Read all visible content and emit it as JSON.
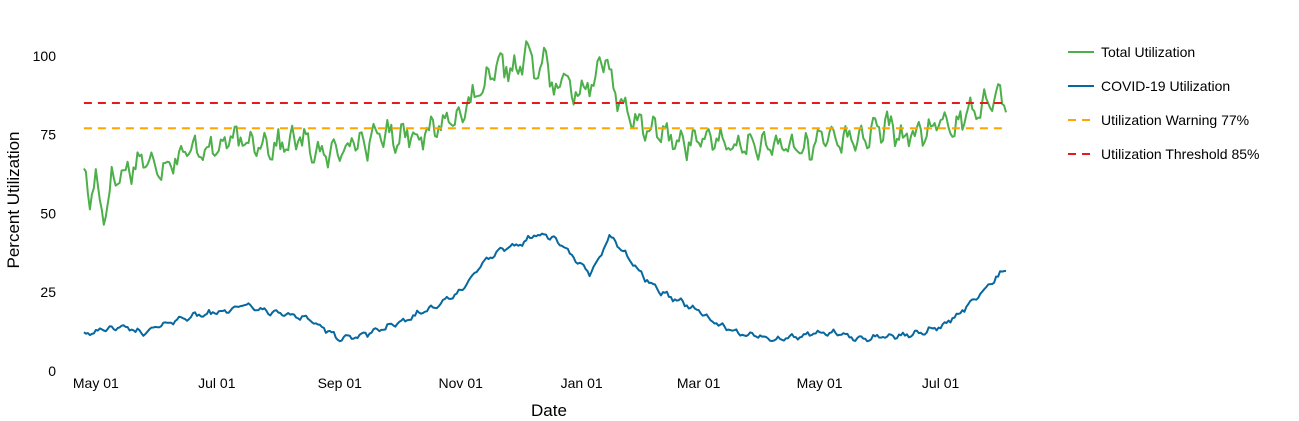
{
  "chart_data": {
    "type": "line",
    "xlabel": "Date",
    "ylabel": "Percent Utilization",
    "ylim": [
      0,
      105
    ],
    "xlim": [
      "2020-04-22",
      "2021-08-05"
    ],
    "grid": false,
    "legend_position": "right",
    "y_ticks": [
      {
        "value": 0,
        "label": "0"
      },
      {
        "value": 25,
        "label": "25"
      },
      {
        "value": 50,
        "label": "50"
      },
      {
        "value": 75,
        "label": "75"
      },
      {
        "value": 100,
        "label": "100"
      }
    ],
    "x_ticks": [
      {
        "date": "2020-05-01",
        "label": "May 01"
      },
      {
        "date": "2020-07-01",
        "label": "Jul 01"
      },
      {
        "date": "2020-09-01",
        "label": "Sep 01"
      },
      {
        "date": "2020-11-01",
        "label": "Nov 01"
      },
      {
        "date": "2021-01-01",
        "label": "Jan 01"
      },
      {
        "date": "2021-03-01",
        "label": "Mar 01"
      },
      {
        "date": "2021-05-01",
        "label": "May 01"
      },
      {
        "date": "2021-07-01",
        "label": "Jul 01"
      }
    ],
    "series": [
      {
        "name": "Total Utilization",
        "color": "#4daf4a",
        "style": "solid",
        "x": [
          "2020-04-25",
          "2020-04-28",
          "2020-05-01",
          "2020-05-05",
          "2020-05-09",
          "2020-05-13",
          "2020-05-18",
          "2020-05-23",
          "2020-05-28",
          "2020-06-04",
          "2020-06-11",
          "2020-06-18",
          "2020-06-25",
          "2020-07-01",
          "2020-07-08",
          "2020-07-15",
          "2020-07-22",
          "2020-07-29",
          "2020-08-05",
          "2020-08-12",
          "2020-08-19",
          "2020-08-26",
          "2020-09-01",
          "2020-09-08",
          "2020-09-15",
          "2020-09-22",
          "2020-09-29",
          "2020-10-06",
          "2020-10-13",
          "2020-10-20",
          "2020-10-27",
          "2020-11-01",
          "2020-11-08",
          "2020-11-15",
          "2020-11-22",
          "2020-11-29",
          "2020-12-06",
          "2020-12-10",
          "2020-12-14",
          "2020-12-18",
          "2020-12-22",
          "2020-12-26",
          "2021-01-01",
          "2021-01-07",
          "2021-01-13",
          "2021-01-19",
          "2021-01-25",
          "2021-02-01",
          "2021-02-08",
          "2021-02-15",
          "2021-02-22",
          "2021-03-01",
          "2021-03-08",
          "2021-03-15",
          "2021-03-22",
          "2021-03-29",
          "2021-04-05",
          "2021-04-12",
          "2021-04-19",
          "2021-04-26",
          "2021-05-01",
          "2021-05-08",
          "2021-05-15",
          "2021-05-22",
          "2021-05-29",
          "2021-06-05",
          "2021-06-12",
          "2021-06-19",
          "2021-06-26",
          "2021-07-01",
          "2021-07-08",
          "2021-07-15",
          "2021-07-22",
          "2021-07-29",
          "2021-08-03"
        ],
        "values": [
          63,
          55,
          61,
          49,
          60,
          62,
          64,
          67,
          66,
          65,
          68,
          70,
          71,
          70,
          74,
          72,
          73,
          71,
          72,
          74,
          70,
          68,
          71,
          73,
          72,
          76,
          74,
          76,
          74,
          78,
          80,
          82,
          86,
          92,
          97,
          95,
          102,
          91,
          104,
          84,
          96,
          88,
          89,
          93,
          100,
          86,
          80,
          78,
          76,
          74,
          72,
          73,
          74,
          72,
          71,
          72,
          70,
          72,
          71,
          70,
          74,
          75,
          73,
          74,
          76,
          78,
          74,
          75,
          76,
          80,
          77,
          82,
          85,
          88,
          84
        ],
        "noise": 4.5,
        "seed": 17
      },
      {
        "name": "COVID-19 Utilization",
        "color": "#07689f",
        "style": "solid",
        "x": [
          "2020-04-25",
          "2020-05-05",
          "2020-05-15",
          "2020-05-25",
          "2020-06-05",
          "2020-06-15",
          "2020-06-25",
          "2020-07-05",
          "2020-07-15",
          "2020-07-25",
          "2020-08-05",
          "2020-08-15",
          "2020-08-25",
          "2020-09-01",
          "2020-09-10",
          "2020-09-20",
          "2020-10-01",
          "2020-10-10",
          "2020-10-20",
          "2020-11-01",
          "2020-11-10",
          "2020-11-20",
          "2020-11-30",
          "2020-12-08",
          "2020-12-15",
          "2020-12-22",
          "2020-12-29",
          "2021-01-05",
          "2021-01-10",
          "2021-01-15",
          "2021-01-22",
          "2021-02-01",
          "2021-02-10",
          "2021-02-20",
          "2021-03-01",
          "2021-03-10",
          "2021-03-20",
          "2021-04-01",
          "2021-04-10",
          "2021-04-20",
          "2021-05-01",
          "2021-05-10",
          "2021-05-20",
          "2021-06-01",
          "2021-06-10",
          "2021-06-20",
          "2021-07-01",
          "2021-07-10",
          "2021-07-20",
          "2021-07-28",
          "2021-08-03"
        ],
        "values": [
          12,
          13,
          14,
          12,
          15,
          17,
          18,
          19,
          21,
          19,
          18,
          17,
          13,
          10,
          11,
          13,
          15,
          18,
          21,
          25,
          33,
          38,
          40,
          43,
          43,
          40,
          35,
          31,
          36,
          43,
          38,
          30,
          25,
          22,
          19,
          15,
          12,
          11,
          10,
          11,
          12,
          12,
          10,
          11,
          11,
          12,
          14,
          18,
          24,
          29,
          32
        ],
        "noise": 1.0,
        "seed": 42
      },
      {
        "name": "Utilization Warning 77%",
        "color": "#ffa500",
        "style": "dashed",
        "x": [
          "2020-04-25",
          "2021-08-03"
        ],
        "values": [
          77,
          77
        ]
      },
      {
        "name": "Utilization Threshold 85%",
        "color": "#e41a1c",
        "style": "dashed",
        "x": [
          "2020-04-25",
          "2021-08-03"
        ],
        "values": [
          85,
          85
        ]
      }
    ]
  }
}
